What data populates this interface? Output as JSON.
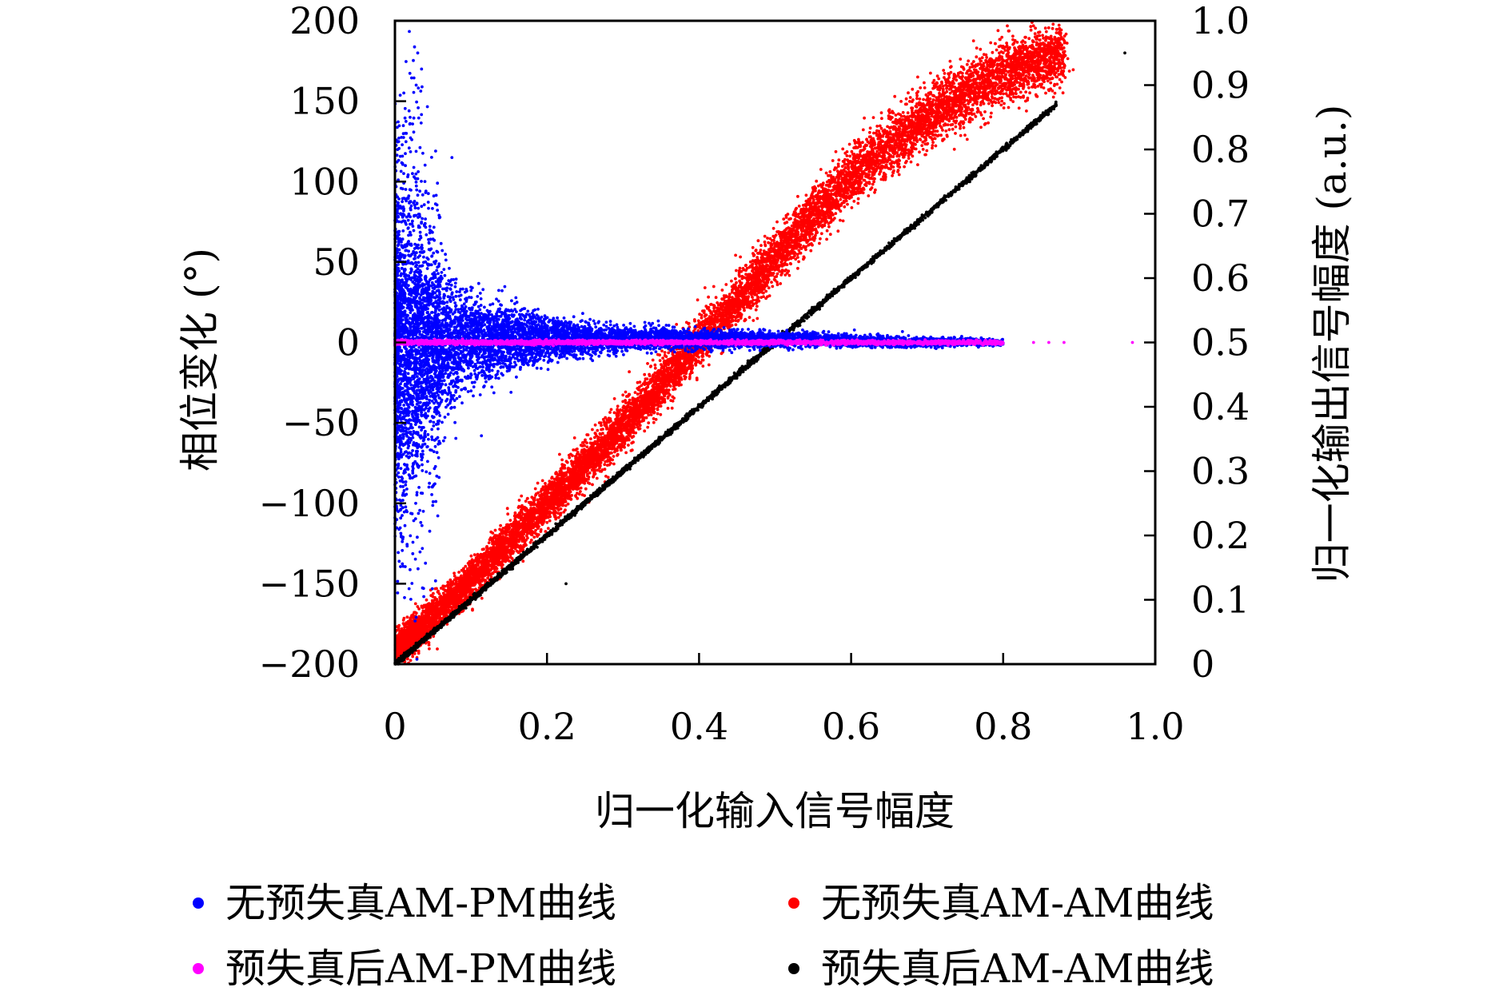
{
  "chart_data": {
    "type": "scatter",
    "title": "",
    "xlabel": "归一化输入信号幅度",
    "ylabel_left": "相位变化 (°)",
    "ylabel_right": "归一化输出信号幅度 (a.u.)",
    "xlim": [
      0,
      1.0
    ],
    "ylim_left": [
      -200,
      200
    ],
    "ylim_right": [
      0,
      1.0
    ],
    "x_ticks": [
      "0",
      "0.2",
      "0.4",
      "0.6",
      "0.8",
      "1.0"
    ],
    "y_left_ticks": [
      "200",
      "150",
      "100",
      "50",
      "0",
      "−50",
      "−100",
      "−150",
      "−200"
    ],
    "y_right_ticks": [
      "1.0",
      "0.9",
      "0.8",
      "0.7",
      "0.6",
      "0.5",
      "0.4",
      "0.3",
      "0.2",
      "0.1",
      "0"
    ],
    "grid": false,
    "legend_position": "bottom",
    "series": [
      {
        "name": "无预失真AM-PM曲线",
        "color": "#0000ff",
        "axis": "left",
        "description_points": [
          {
            "x": 0.01,
            "y_center": 0,
            "y_spread": 100
          },
          {
            "x": 0.05,
            "y_center": 0,
            "y_spread": 55
          },
          {
            "x": 0.1,
            "y_center": 2,
            "y_spread": 30
          },
          {
            "x": 0.2,
            "y_center": 2,
            "y_spread": 14
          },
          {
            "x": 0.3,
            "y_center": 2,
            "y_spread": 8
          },
          {
            "x": 0.4,
            "y_center": 2,
            "y_spread": 6
          },
          {
            "x": 0.5,
            "y_center": 2,
            "y_spread": 5
          },
          {
            "x": 0.6,
            "y_center": 1,
            "y_spread": 4
          },
          {
            "x": 0.7,
            "y_center": 0,
            "y_spread": 3
          },
          {
            "x": 0.8,
            "y_center": 0,
            "y_spread": 2
          }
        ],
        "outliers": [
          [
            0.03,
            180
          ],
          [
            0.035,
            170
          ],
          [
            0.028,
            160
          ],
          [
            0.075,
            115
          ],
          [
            0.02,
            140
          ],
          [
            0.015,
            130
          ]
        ]
      },
      {
        "name": "无预失真AM-AM曲线",
        "color": "#ff0000",
        "axis": "right",
        "description_points": [
          {
            "x": 0.0,
            "y": 0.02
          },
          {
            "x": 0.1,
            "y": 0.13
          },
          {
            "x": 0.2,
            "y": 0.25
          },
          {
            "x": 0.3,
            "y": 0.37
          },
          {
            "x": 0.4,
            "y": 0.5
          },
          {
            "x": 0.5,
            "y": 0.63
          },
          {
            "x": 0.6,
            "y": 0.76
          },
          {
            "x": 0.7,
            "y": 0.85
          },
          {
            "x": 0.8,
            "y": 0.92
          },
          {
            "x": 0.88,
            "y": 0.95
          }
        ]
      },
      {
        "name": "预失真后AM-PM曲线",
        "color": "#ff00ff",
        "axis": "left",
        "description_points": [
          {
            "x": 0.0,
            "y": 0
          },
          {
            "x": 0.5,
            "y": 0
          },
          {
            "x": 0.8,
            "y": 0
          },
          {
            "x": 0.97,
            "y": 0
          }
        ]
      },
      {
        "name": "预失真后AM-AM曲线",
        "color": "#000000",
        "axis": "right",
        "description_points": [
          {
            "x": 0.0,
            "y": 0.0
          },
          {
            "x": 0.5,
            "y": 0.5
          },
          {
            "x": 0.87,
            "y": 0.87
          },
          {
            "x": 0.96,
            "y": 0.95
          }
        ],
        "outliers": [
          [
            0.225,
            0.125
          ]
        ]
      }
    ]
  }
}
